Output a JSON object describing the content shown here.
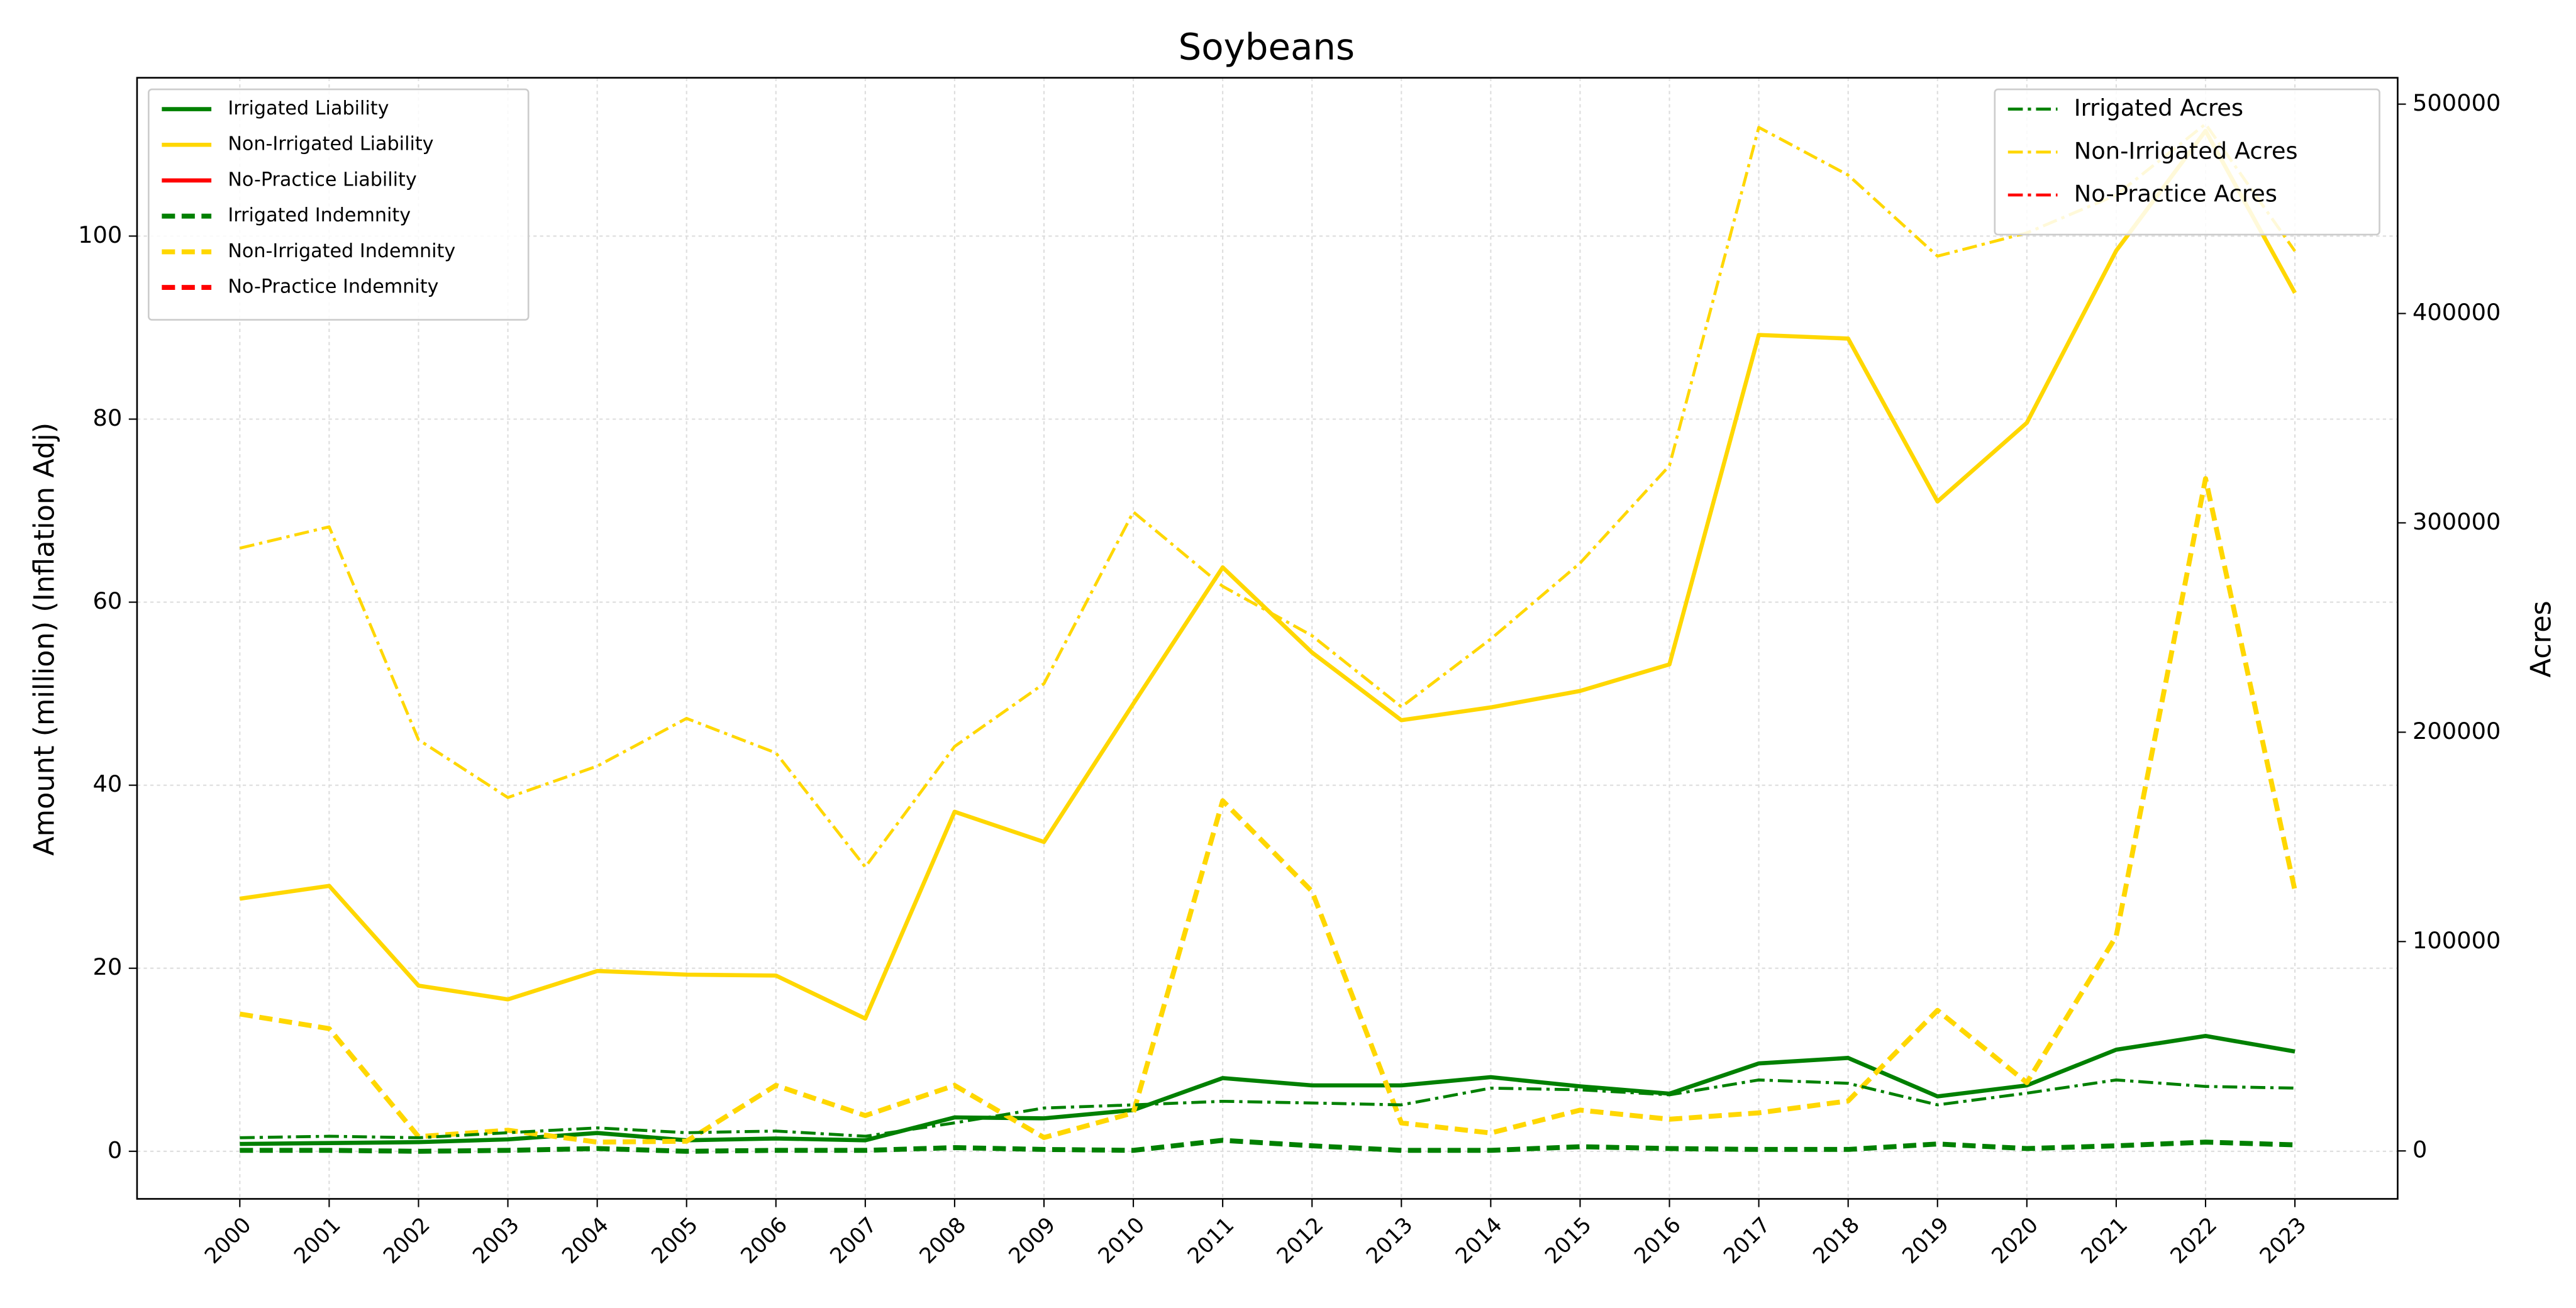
{
  "chart_data": {
    "type": "line",
    "title": "Soybeans",
    "ylabel": "Amount (million) (Inflation Adj)",
    "y2label": "Acres",
    "x": [
      2000,
      2001,
      2002,
      2003,
      2004,
      2005,
      2006,
      2007,
      2008,
      2009,
      2010,
      2011,
      2012,
      2013,
      2014,
      2015,
      2016,
      2017,
      2018,
      2019,
      2020,
      2021,
      2022,
      2023
    ],
    "xlim": [
      1998.85,
      2024.15
    ],
    "xticks": [
      2000,
      2001,
      2002,
      2003,
      2004,
      2005,
      2006,
      2007,
      2008,
      2009,
      2010,
      2011,
      2012,
      2013,
      2014,
      2015,
      2016,
      2017,
      2018,
      2019,
      2020,
      2021,
      2022,
      2023
    ],
    "ylim": [
      -5.2,
      117.3
    ],
    "yticks": [
      0,
      20,
      40,
      60,
      80,
      100
    ],
    "y2lim": [
      -22900,
      512600
    ],
    "y2ticks": [
      0,
      100000,
      200000,
      300000,
      400000,
      500000
    ],
    "grid": true,
    "legend": "upper left",
    "legend2": "upper right",
    "series": [
      {
        "name": "Irrigated Liability",
        "color": "green",
        "style": "solid",
        "values": [
          0.8,
          0.9,
          1.0,
          1.3,
          2.0,
          1.2,
          1.4,
          1.2,
          3.7,
          3.6,
          4.5,
          8.0,
          7.2,
          7.2,
          8.1,
          7.1,
          6.3,
          9.6,
          10.2,
          6.0,
          7.2,
          11.1,
          12.6,
          10.9
        ]
      },
      {
        "name": "Non-Irrigated Liability",
        "color": "gold",
        "style": "solid",
        "values": [
          27.6,
          29.0,
          18.1,
          16.6,
          19.7,
          19.3,
          19.2,
          14.5,
          37.1,
          33.8,
          48.9,
          63.8,
          54.5,
          47.1,
          48.5,
          50.3,
          53.2,
          89.2,
          88.8,
          71.0,
          79.6,
          98.4,
          111.5,
          93.8
        ]
      },
      {
        "name": "No-Practice Liability",
        "color": "red",
        "style": "solid",
        "values": [
          null,
          null,
          null,
          null,
          null,
          null,
          null,
          null,
          null,
          null,
          null,
          null,
          null,
          null,
          null,
          null,
          null,
          null,
          null,
          null,
          null,
          null,
          null,
          null
        ]
      },
      {
        "name": "Irrigated Indemnity",
        "color": "green",
        "style": "dashed",
        "values": [
          0.1,
          0.1,
          0.0,
          0.1,
          0.3,
          0.0,
          0.1,
          0.1,
          0.4,
          0.2,
          0.1,
          1.2,
          0.6,
          0.1,
          0.1,
          0.5,
          0.3,
          0.2,
          0.2,
          0.8,
          0.3,
          0.6,
          1.0,
          0.7
        ]
      },
      {
        "name": "Non-Irrigated Indemnity",
        "color": "gold",
        "style": "dashed",
        "values": [
          15.0,
          13.4,
          1.6,
          2.3,
          1.0,
          1.1,
          7.2,
          3.9,
          7.2,
          1.5,
          4.2,
          38.3,
          28.4,
          3.1,
          2.0,
          4.5,
          3.5,
          4.2,
          5.5,
          15.4,
          7.5,
          23.5,
          73.5,
          28.5
        ]
      },
      {
        "name": "No-Practice Indemnity",
        "color": "red",
        "style": "dashed",
        "values": [
          null,
          null,
          null,
          null,
          null,
          null,
          null,
          null,
          null,
          null,
          null,
          null,
          null,
          null,
          null,
          null,
          null,
          null,
          null,
          null,
          null,
          null,
          null,
          null
        ]
      },
      {
        "name": "Irrigated Acres",
        "color": "green",
        "style": "dashdot",
        "axis": "y2",
        "values": [
          6300,
          7000,
          6300,
          8700,
          11000,
          8700,
          9500,
          7000,
          13400,
          20500,
          22000,
          23700,
          22900,
          22000,
          30000,
          29200,
          26800,
          33900,
          32300,
          22000,
          27600,
          33900,
          30800,
          30000
        ]
      },
      {
        "name": "Non-Irrigated Acres",
        "color": "gold",
        "style": "dashdot",
        "axis": "y2",
        "values": [
          287900,
          298100,
          196400,
          168800,
          183800,
          206600,
          190100,
          135600,
          193200,
          223200,
          305200,
          269700,
          246100,
          212100,
          244500,
          280800,
          327300,
          488900,
          466100,
          427400,
          438500,
          456600,
          490500,
          429800
        ]
      },
      {
        "name": "No-Practice Acres",
        "color": "red",
        "style": "dashdot",
        "axis": "y2",
        "values": [
          null,
          null,
          null,
          null,
          null,
          null,
          null,
          null,
          null,
          null,
          null,
          null,
          null,
          null,
          null,
          null,
          null,
          null,
          null,
          null,
          null,
          null,
          null,
          null
        ]
      }
    ]
  }
}
